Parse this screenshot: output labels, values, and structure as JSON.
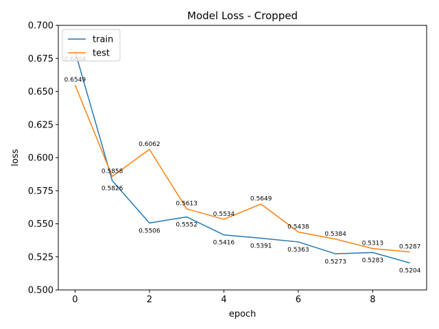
{
  "chart_data": {
    "type": "line",
    "title": "Model Loss - Cropped",
    "xlabel": "epoch",
    "ylabel": "loss",
    "x": [
      0,
      1,
      2,
      3,
      4,
      5,
      6,
      7,
      8,
      9
    ],
    "xlim": [
      -0.45,
      9.45
    ],
    "ylim": [
      0.5,
      0.7
    ],
    "xticks": [
      0,
      2,
      4,
      6,
      8
    ],
    "yticks": [
      0.5,
      0.525,
      0.55,
      0.575,
      0.6,
      0.625,
      0.65,
      0.675,
      0.7
    ],
    "ytick_labels": [
      "0.500",
      "0.525",
      "0.550",
      "0.575",
      "0.600",
      "0.625",
      "0.650",
      "0.675",
      "0.700"
    ],
    "legend_position": "upper-left",
    "series": [
      {
        "name": "train",
        "color": "#1f77b4",
        "values": [
          0.6804,
          0.5826,
          0.5506,
          0.5552,
          0.5416,
          0.5391,
          0.5363,
          0.5273,
          0.5283,
          0.5204
        ],
        "labels": [
          "0.6804",
          "0.5826",
          "0.5506",
          "0.5552",
          "0.5416",
          "0.5391",
          "0.5363",
          "0.5273",
          "0.5283",
          "0.5204"
        ],
        "label_side": "below"
      },
      {
        "name": "test",
        "color": "#ff7f0e",
        "values": [
          0.6549,
          0.5858,
          0.6062,
          0.5613,
          0.5534,
          0.5649,
          0.5438,
          0.5384,
          0.5313,
          0.5287
        ],
        "labels": [
          "0.6549",
          "0.5858",
          "0.6062",
          "0.5613",
          "0.5534",
          "0.5649",
          "0.5438",
          "0.5384",
          "0.5313",
          "0.5287"
        ],
        "label_side": "above"
      }
    ]
  }
}
